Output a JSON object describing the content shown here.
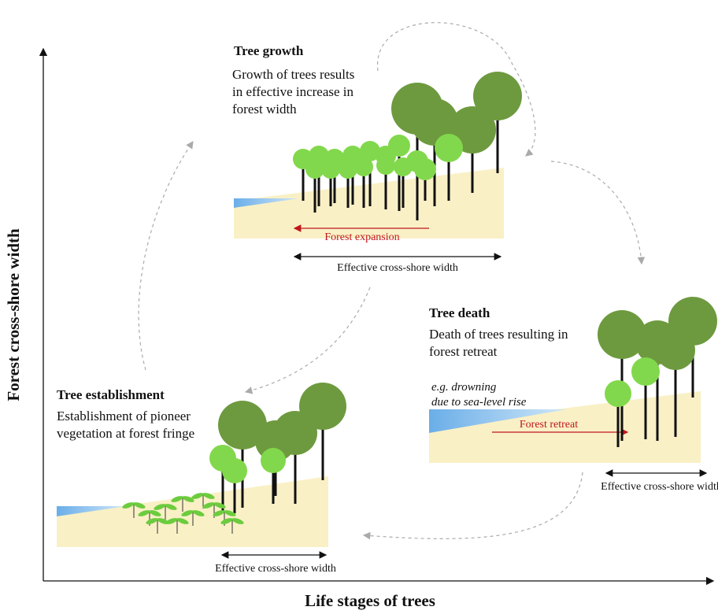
{
  "axes": {
    "y_label": "Forest cross-shore width",
    "x_label": "Life stages of trees"
  },
  "growth": {
    "title": "Tree growth",
    "description": [
      "Growth of trees results",
      "in effective increase in",
      "forest width"
    ],
    "arrow_label": "Forest expansion",
    "width_label": "Effective cross-shore width"
  },
  "death": {
    "title": "Tree death",
    "description": [
      "Death of trees resulting in",
      "forest retreat"
    ],
    "note": [
      "e.g. drowning",
      "due to sea-level rise"
    ],
    "arrow_label": "Forest retreat",
    "width_label": "Effective cross-shore width"
  },
  "establishment": {
    "title": "Tree establishment",
    "description": [
      "Establishment of pioneer",
      "vegetation at forest fringe"
    ],
    "width_label": "Effective cross-shore width"
  }
}
